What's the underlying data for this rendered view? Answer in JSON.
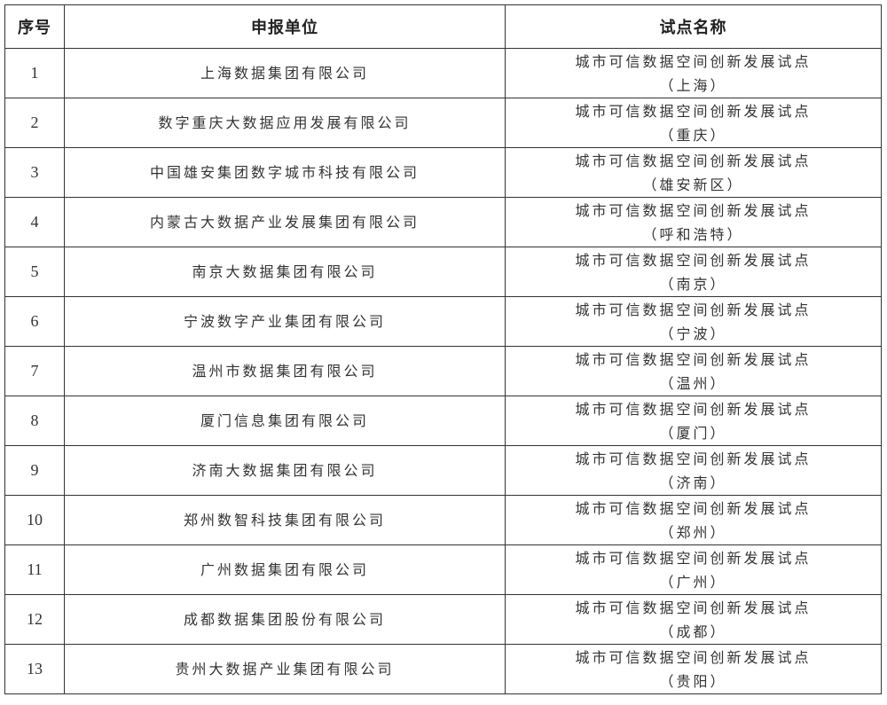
{
  "headers": {
    "index": "序号",
    "unit": "申报单位",
    "pilot": "试点名称"
  },
  "rows": [
    {
      "index": "1",
      "unit": "上海数据集团有限公司",
      "pilot": "城市可信数据空间创新发展试点",
      "city": "（上海）"
    },
    {
      "index": "2",
      "unit": "数字重庆大数据应用发展有限公司",
      "pilot": "城市可信数据空间创新发展试点",
      "city": "（重庆）"
    },
    {
      "index": "3",
      "unit": "中国雄安集团数字城市科技有限公司",
      "pilot": "城市可信数据空间创新发展试点",
      "city": "（雄安新区）"
    },
    {
      "index": "4",
      "unit": "内蒙古大数据产业发展集团有限公司",
      "pilot": "城市可信数据空间创新发展试点",
      "city": "（呼和浩特）"
    },
    {
      "index": "5",
      "unit": "南京大数据集团有限公司",
      "pilot": "城市可信数据空间创新发展试点",
      "city": "（南京）"
    },
    {
      "index": "6",
      "unit": "宁波数字产业集团有限公司",
      "pilot": "城市可信数据空间创新发展试点",
      "city": "（宁波）"
    },
    {
      "index": "7",
      "unit": "温州市数据集团有限公司",
      "pilot": "城市可信数据空间创新发展试点",
      "city": "（温州）"
    },
    {
      "index": "8",
      "unit": "厦门信息集团有限公司",
      "pilot": "城市可信数据空间创新发展试点",
      "city": "（厦门）"
    },
    {
      "index": "9",
      "unit": "济南大数据集团有限公司",
      "pilot": "城市可信数据空间创新发展试点",
      "city": "（济南）"
    },
    {
      "index": "10",
      "unit": "郑州数智科技集团有限公司",
      "pilot": "城市可信数据空间创新发展试点",
      "city": "（郑州）"
    },
    {
      "index": "11",
      "unit": "广州数据集团有限公司",
      "pilot": "城市可信数据空间创新发展试点",
      "city": "（广州）"
    },
    {
      "index": "12",
      "unit": "成都数据集团股份有限公司",
      "pilot": "城市可信数据空间创新发展试点",
      "city": "（成都）"
    },
    {
      "index": "13",
      "unit": "贵州大数据产业集团有限公司",
      "pilot": "城市可信数据空间创新发展试点",
      "city": "（贵阳）"
    }
  ]
}
